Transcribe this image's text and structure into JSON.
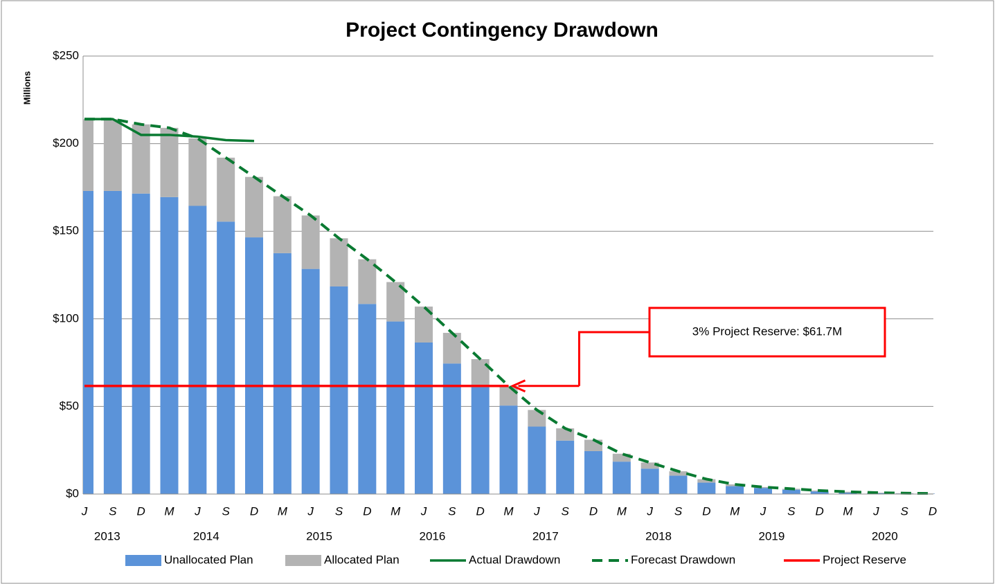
{
  "chart_data": {
    "type": "bar",
    "title": "Project Contingency Drawdown",
    "y_label": "Millions",
    "categories": [
      "J",
      "S",
      "D",
      "M",
      "J",
      "S",
      "D",
      "M",
      "J",
      "S",
      "D",
      "M",
      "J",
      "S",
      "D",
      "M",
      "J",
      "S",
      "D",
      "M",
      "J",
      "S",
      "D",
      "M",
      "J",
      "S",
      "D",
      "M",
      "J",
      "S",
      "D"
    ],
    "years": [
      "2013",
      "2014",
      "2015",
      "2016",
      "2017",
      "2018",
      "2019",
      "2020"
    ],
    "series": [
      {
        "name": "Unallocated Plan",
        "type": "bar",
        "color": "#5b93d9",
        "values": [
          173,
          173,
          171.5,
          169.5,
          164.5,
          155.5,
          146.5,
          137.5,
          128.5,
          118.5,
          108.5,
          98.5,
          86.5,
          74.5,
          61,
          50.5,
          38.5,
          30.5,
          24.5,
          18.5,
          14.5,
          10.5,
          6.5,
          4.5,
          3.5,
          2.5,
          1.5,
          0.8,
          0.5,
          0.3,
          0.2
        ]
      },
      {
        "name": "Allocated Plan",
        "type": "bar",
        "color": "#b3b3b3",
        "values": [
          41,
          41,
          39.5,
          39.5,
          38.5,
          36.5,
          34.5,
          32.5,
          30.5,
          27.5,
          25.5,
          22.5,
          20.5,
          17.5,
          16,
          11.2,
          9.5,
          7,
          6.5,
          4.5,
          3.5,
          2.5,
          2,
          1,
          0.5,
          0.5,
          0.5,
          0.5,
          0.3,
          0.2,
          0.1
        ]
      },
      {
        "name": "Actual Drawdown",
        "type": "line",
        "color": "#0a7a32",
        "values": [
          214,
          214,
          205,
          205,
          204,
          202,
          201.5,
          null,
          null,
          null,
          null,
          null,
          null,
          null,
          null,
          null,
          null,
          null,
          null,
          null,
          null,
          null,
          null,
          null,
          null,
          null,
          null,
          null,
          null,
          null,
          null
        ]
      },
      {
        "name": "Forecast Drawdown",
        "type": "line",
        "dashed": true,
        "color": "#0a7a32",
        "values": [
          214,
          214,
          211,
          209,
          203,
          192,
          181,
          170,
          159,
          146,
          134,
          121,
          107,
          92,
          77,
          61.7,
          48,
          37.5,
          31,
          23,
          18,
          13,
          8.5,
          5.5,
          4,
          3,
          2,
          1.3,
          0.8,
          0.5,
          0.3
        ]
      },
      {
        "name": "Project Reserve",
        "type": "line",
        "color": "#ff0000",
        "values": [
          61.7,
          61.7,
          61.7,
          61.7,
          61.7,
          61.7,
          61.7,
          61.7,
          61.7,
          61.7,
          61.7,
          61.7,
          61.7,
          61.7,
          61.7,
          61.7,
          null,
          null,
          null,
          null,
          null,
          null,
          null,
          null,
          null,
          null,
          null,
          null,
          null,
          null,
          null
        ]
      }
    ],
    "annotation": "3% Project Reserve: $61.7M",
    "ylim": [
      0,
      250
    ],
    "yticks": [
      {
        "value": 0,
        "label": "$0"
      },
      {
        "value": 50,
        "label": "$50"
      },
      {
        "value": 100,
        "label": "$100"
      },
      {
        "value": 150,
        "label": "$150"
      },
      {
        "value": 200,
        "label": "$200"
      },
      {
        "value": 250,
        "label": "$250"
      }
    ],
    "grid": true
  }
}
